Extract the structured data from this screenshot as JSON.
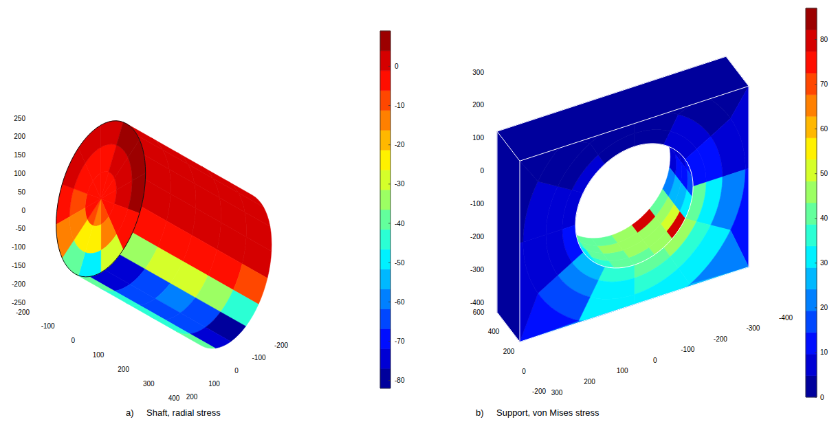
{
  "chart_data": [
    {
      "type": "surface",
      "label": "a)",
      "title": "Shaft, radial stress",
      "xlim": [
        -200,
        400
      ],
      "xticks": [
        -200,
        -100,
        0,
        100,
        200,
        300,
        400
      ],
      "ylim": [
        -200,
        200
      ],
      "yticks": [
        -200,
        -100,
        0,
        100,
        200
      ],
      "zlim": [
        -250,
        250
      ],
      "zticks": [
        -250,
        -200,
        -150,
        -100,
        -50,
        0,
        50,
        100,
        150,
        200,
        250
      ],
      "color_bar": {
        "range": [
          -82,
          9
        ],
        "ticks": [
          -80,
          -70,
          -60,
          -50,
          -40,
          -30,
          -20,
          -10,
          0
        ]
      },
      "shaft": {
        "end_face": {
          "x": -100,
          "radius": [
            0,
            70,
            140,
            200
          ],
          "angle": [
            0,
            30,
            60,
            90,
            120,
            150,
            180,
            210,
            240,
            270,
            300,
            330,
            360
          ],
          "values": [
            [
              -5,
              -4,
              -6,
              -6,
              -4,
              -2,
              -2,
              -3,
              -8,
              -12,
              -10,
              -6
            ],
            [
              -8,
              -2,
              -5,
              -4,
              2,
              2,
              2,
              -3,
              -12,
              -22,
              -26,
              -15
            ],
            [
              -4,
              3,
              3,
              3,
              4,
              4,
              4,
              -2,
              -30,
              -50,
              -40,
              -12
            ]
          ]
        },
        "side": {
          "radius": 200,
          "x": [
            -100,
            0,
            100,
            200,
            300,
            400
          ],
          "angle": [
            125,
            145,
            165,
            185,
            205,
            225,
            245,
            265,
            285,
            305
          ],
          "values": [
            [
              3,
              3,
              3,
              2,
              -6,
              -32,
              -75,
              -72,
              -40
            ],
            [
              3,
              3,
              3,
              2,
              -4,
              -30,
              -62,
              -64,
              -45
            ],
            [
              3,
              3,
              3,
              2,
              -4,
              -30,
              -60,
              -62,
              -45
            ],
            [
              3,
              3,
              3,
              2,
              -4,
              -32,
              -62,
              -65,
              -45
            ],
            [
              3,
              3,
              2,
              1,
              -8,
              -45,
              -80,
              -76,
              -38
            ]
          ]
        }
      }
    },
    {
      "type": "surface",
      "label": "b)",
      "title": "Support, von Mises stress",
      "xlim": [
        -400,
        300
      ],
      "xticks": [
        -400,
        -300,
        -200,
        -100,
        0,
        100,
        200,
        300
      ],
      "ylim": [
        -200,
        600
      ],
      "yticks": [
        -200,
        0,
        200,
        400,
        600
      ],
      "zlim": [
        -400,
        300
      ],
      "zticks": [
        -400,
        -300,
        -200,
        -100,
        0,
        100,
        200,
        300
      ],
      "color_bar": {
        "range": [
          0,
          87
        ],
        "ticks": [
          0,
          10,
          20,
          30,
          40,
          50,
          60,
          70,
          80
        ]
      },
      "support": {
        "x": [
          -400,
          300
        ],
        "y": [
          200,
          500
        ],
        "z": [
          -400,
          150
        ],
        "face_value": 3,
        "bore": {
          "center_x": -50,
          "center_z": -100,
          "radius": 180,
          "angle": [
            150,
            170,
            190,
            210,
            230,
            250,
            270,
            290,
            310,
            330
          ],
          "y": [
            200,
            275,
            350,
            425,
            500
          ],
          "values": [
            [
              10,
              15,
              30,
              80,
              45,
              42,
              40,
              38,
              30
            ],
            [
              8,
              12,
              28,
              50,
              46,
              44,
              42,
              40,
              32
            ],
            [
              6,
              10,
              25,
              45,
              46,
              45,
              44,
              42,
              35
            ],
            [
              5,
              8,
              20,
              40,
              78,
              44,
              43,
              40,
              34
            ]
          ]
        },
        "front_face": {
          "radius": [
            180,
            220,
            270,
            340,
            1000
          ],
          "angle": [
            0,
            30,
            60,
            90,
            120,
            150,
            180,
            210,
            240,
            270,
            300,
            330,
            360
          ],
          "values": [
            [
              8,
              5,
              4,
              4,
              6,
              12,
              40,
              45,
              40,
              35,
              25,
              12
            ],
            [
              6,
              4,
              3,
              3,
              5,
              10,
              30,
              38,
              36,
              32,
              20,
              9
            ],
            [
              5,
              3,
              3,
              3,
              4,
              8,
              22,
              32,
              33,
              30,
              16,
              7
            ],
            [
              4,
              3,
              2,
              2,
              3,
              5,
              14,
              22,
              26,
              22,
              12,
              5
            ]
          ]
        }
      }
    }
  ]
}
